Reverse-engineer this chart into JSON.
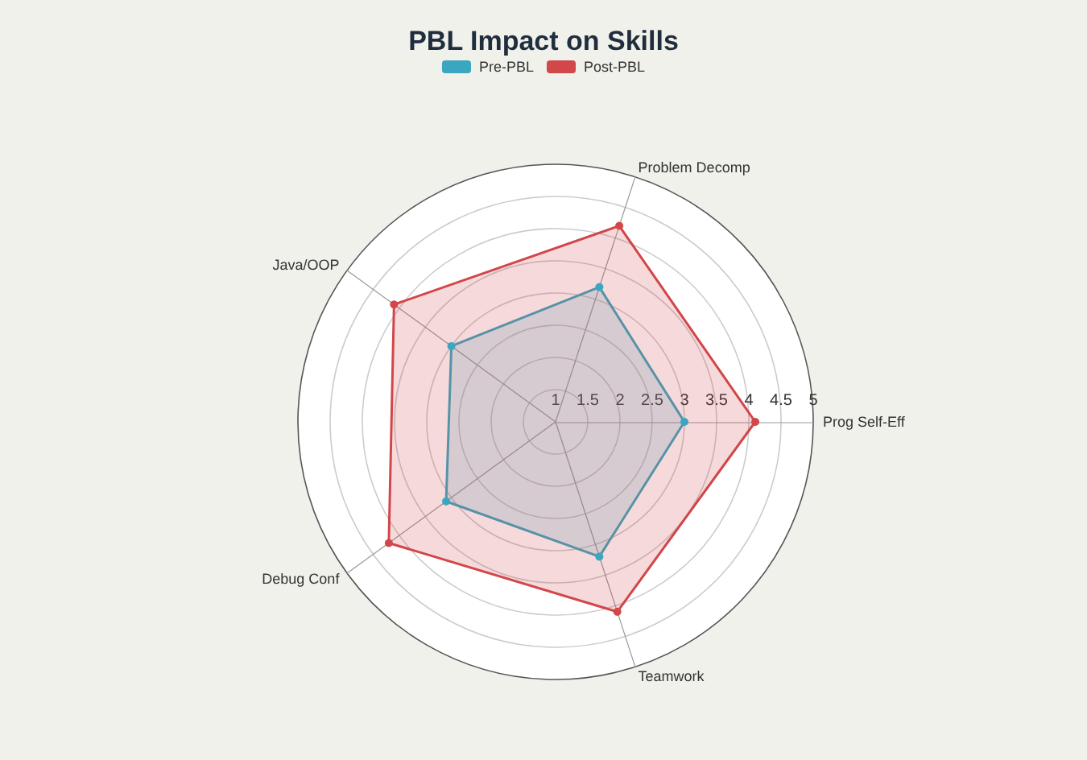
{
  "chart_data": {
    "type": "radar",
    "title": "PBL Impact on Skills",
    "categories": [
      "Problem Decomp",
      "Prog Self-Eff",
      "Teamwork",
      "Debug Conf",
      "Java/OOP"
    ],
    "series": [
      {
        "name": "Pre-PBL",
        "color": "#3aa6bf",
        "values": [
          3.2,
          3.0,
          3.2,
          3.1,
          3.0
        ]
      },
      {
        "name": "Post-PBL",
        "color": "#d2474a",
        "values": [
          4.2,
          4.1,
          4.1,
          4.2,
          4.1
        ]
      }
    ],
    "ylim": [
      1,
      5
    ],
    "yticks": [
      1,
      1.5,
      2,
      2.5,
      3,
      3.5,
      4,
      4.5,
      5
    ],
    "grid": true,
    "legend": "top",
    "marker": "circle"
  }
}
